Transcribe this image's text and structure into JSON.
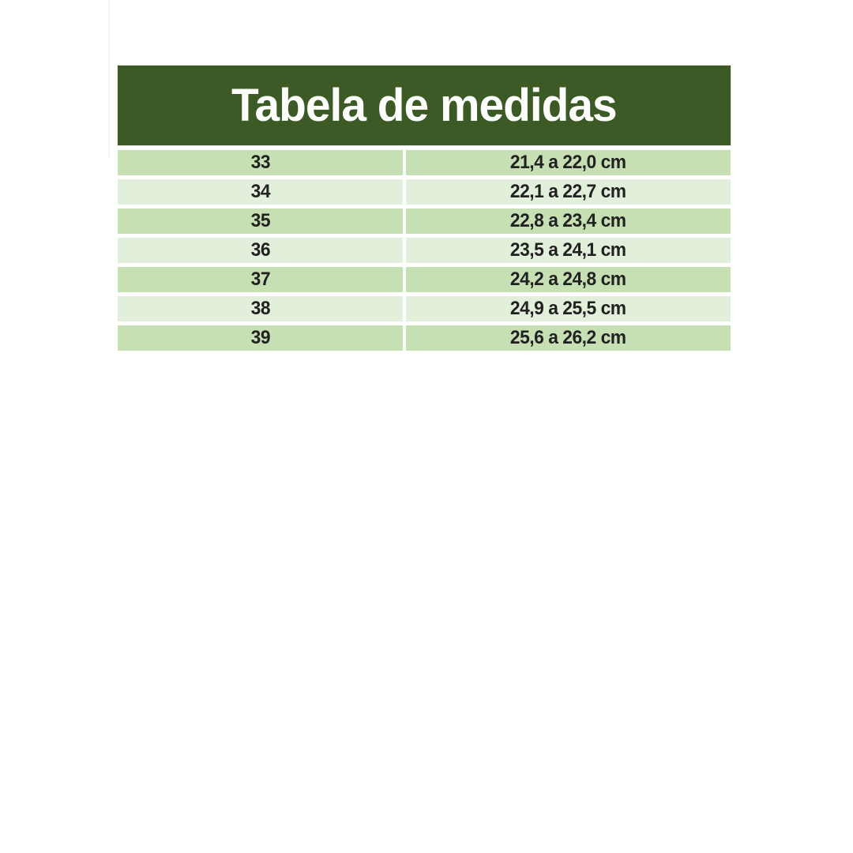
{
  "chart_data": {
    "type": "table",
    "title": "Tabela de medidas",
    "rows": [
      {
        "size": "33",
        "range": "21,4 a 22,0 cm"
      },
      {
        "size": "34",
        "range": "22,1 a 22,7 cm"
      },
      {
        "size": "35",
        "range": "22,8 a 23,4 cm"
      },
      {
        "size": "36",
        "range": "23,5 a 24,1 cm"
      },
      {
        "size": "37",
        "range": "24,2 a 24,8 cm"
      },
      {
        "size": "38",
        "range": "24,9 a 25,5 cm"
      },
      {
        "size": "39",
        "range": "25,6 a 26,2 cm"
      }
    ],
    "layout": {
      "legend": "none",
      "grid": "white gaps between solid green row bands",
      "row_shading": "alternating, starting dark on first row"
    }
  },
  "colors": {
    "header_bg": "#3b5a26",
    "header_text": "#fdfdfb",
    "row_dark": "#c6e0b4",
    "row_light": "#e2efda",
    "row_text": "#212121",
    "canvas_bg": "#ffffff"
  }
}
